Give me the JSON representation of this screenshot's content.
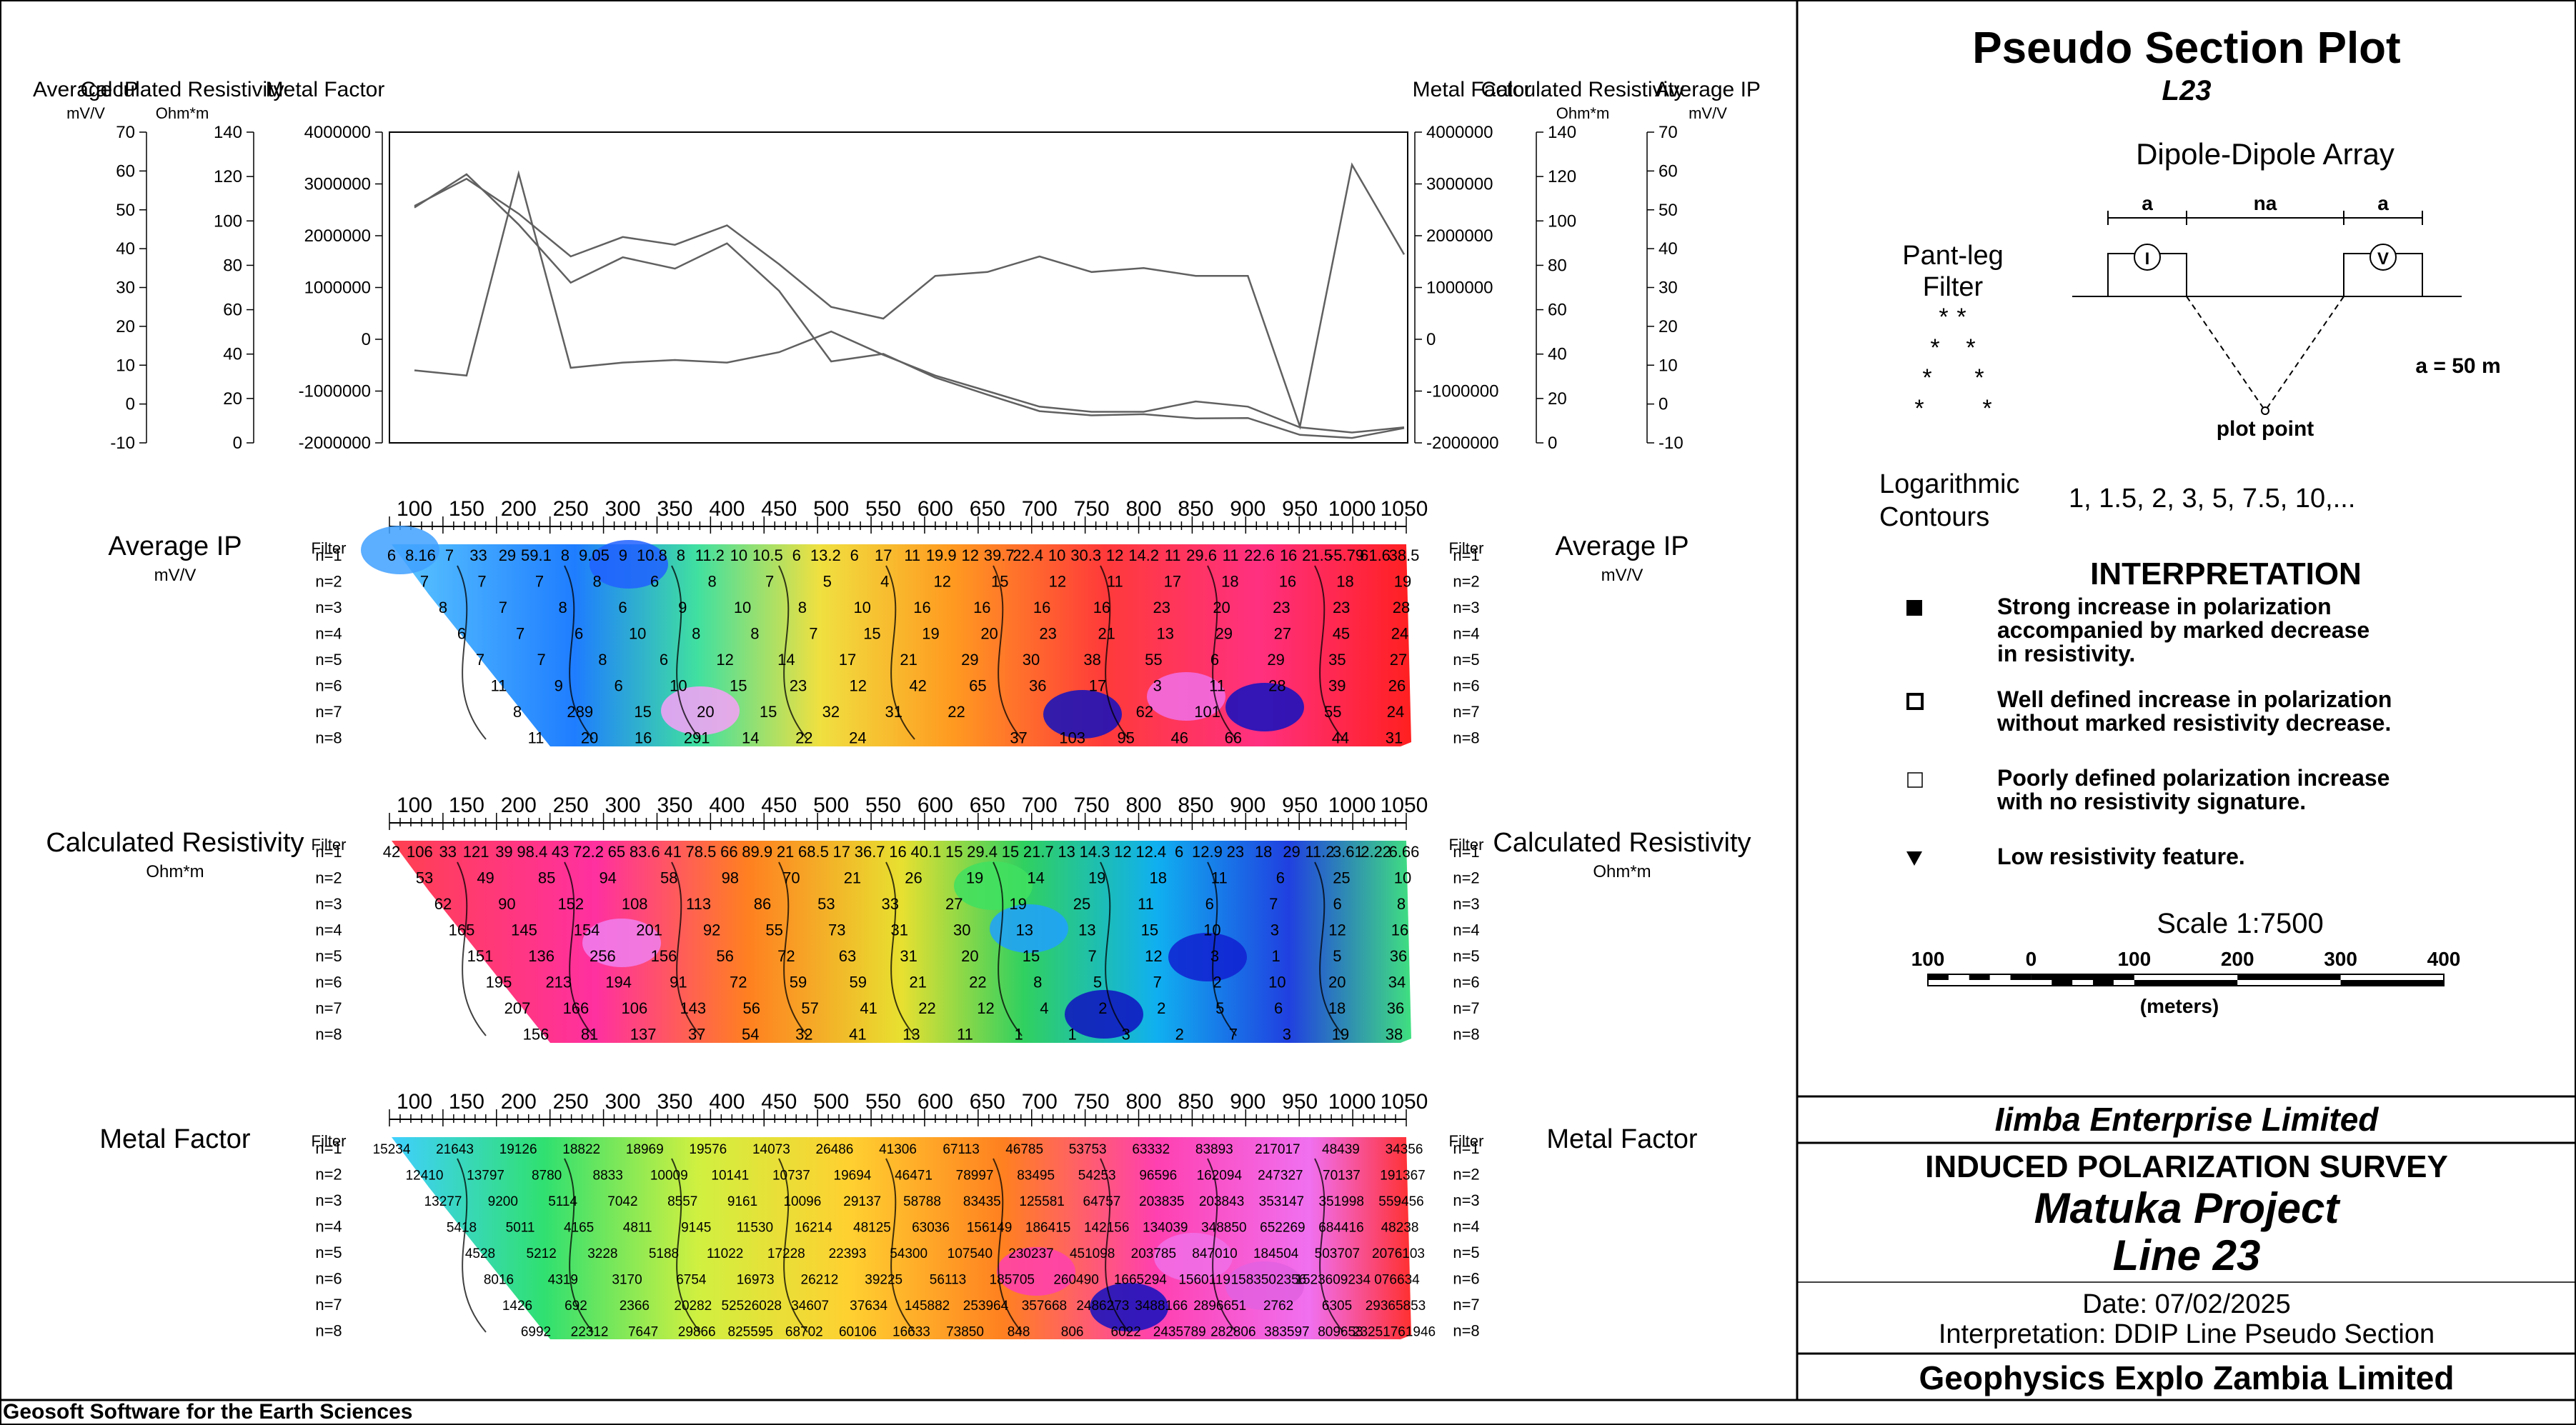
{
  "footer": "Geosoft Software for the Earth Sciences",
  "top_plot": {
    "left_axes": [
      {
        "title": "Average IP",
        "unit": "mV/V",
        "ticks": [
          "70",
          "60",
          "50",
          "40",
          "30",
          "20",
          "10",
          "0",
          "-10"
        ]
      },
      {
        "title": "Calculated Resistivity",
        "unit": "Ohm*m",
        "ticks": [
          "140",
          "120",
          "100",
          "80",
          "60",
          "40",
          "20",
          "0"
        ]
      },
      {
        "title": "Metal Factor",
        "unit": "",
        "ticks": [
          "4000000",
          "3000000",
          "2000000",
          "1000000",
          "0",
          "-1000000",
          "-2000000"
        ]
      }
    ],
    "right_axes": [
      {
        "title": "Metal Factor",
        "unit": "",
        "ticks": [
          "4000000",
          "3000000",
          "2000000",
          "1000000",
          "0",
          "-1000000",
          "-2000000"
        ]
      },
      {
        "title": "Calculated Resistivity",
        "unit": "Ohm*m",
        "ticks": [
          "140",
          "120",
          "100",
          "80",
          "60",
          "40",
          "20",
          "0"
        ]
      },
      {
        "title": "Average IP",
        "unit": "mV/V",
        "ticks": [
          "70",
          "60",
          "50",
          "40",
          "30",
          "20",
          "10",
          "0",
          "-10"
        ]
      }
    ]
  },
  "chart_data": {
    "type": "line",
    "x": [
      100,
      150,
      200,
      250,
      300,
      350,
      400,
      450,
      500,
      550,
      600,
      650,
      700,
      750,
      800,
      850,
      900,
      950,
      1000,
      1050
    ],
    "series": [
      {
        "values": [
          51,
          58,
          49,
          38,
          43,
          41,
          46,
          36,
          25,
          22,
          33,
          34,
          38,
          34,
          35,
          33,
          33,
          -5.79,
          61.6,
          38.5
        ]
      },
      {
        "values": [
          106,
          121,
          98.4,
          72.2,
          83.6,
          78.5,
          89.9,
          68.5,
          36.7,
          40.1,
          29.4,
          21.7,
          14.3,
          12.4,
          12.9,
          11,
          11.2,
          3.61,
          2.22,
          6.66
        ]
      },
      {
        "values": [
          -600000,
          -700000,
          3200000,
          -550000,
          -450000,
          -400000,
          -450000,
          -250000,
          150000,
          -300000,
          -700000,
          -1000000,
          -1300000,
          -1400000,
          -1400000,
          -1200000,
          -1300000,
          -1700000,
          -1800000,
          -1700000
        ]
      }
    ]
  },
  "x_ticks": [
    "100",
    "150",
    "200",
    "250",
    "300",
    "350",
    "400",
    "450",
    "500",
    "550",
    "600",
    "650",
    "700",
    "750",
    "800",
    "850",
    "900",
    "950",
    "1000",
    "1050"
  ],
  "levels": [
    "n=1",
    "n=2",
    "n=3",
    "n=4",
    "n=5",
    "n=6",
    "n=7",
    "n=8"
  ],
  "filter_label": "Filter",
  "sections": [
    {
      "title": "Average IP",
      "unit": "mV/V",
      "rows": [
        [
          "6",
          "8.16",
          "7",
          "33",
          "29",
          "59.1",
          "8",
          "9.05",
          "9",
          "10.8",
          "8",
          "11.2",
          "10",
          "10.5",
          "6",
          "13.2",
          "6",
          "17",
          "11",
          "19.9",
          "12",
          "39.7",
          "22.4",
          "10",
          "30.3",
          "12",
          "14.2",
          "11",
          "29.6",
          "11",
          "22.6",
          "16",
          "21.5",
          "-5.79",
          "61.6",
          "38.5"
        ],
        [
          "7",
          "7",
          "7",
          "8",
          "6",
          "8",
          "7",
          "5",
          "4",
          "12",
          "15",
          "12",
          "11",
          "17",
          "18",
          "16",
          "18",
          "19"
        ],
        [
          "8",
          "7",
          "8",
          "6",
          "9",
          "10",
          "8",
          "10",
          "16",
          "16",
          "16",
          "16",
          "23",
          "20",
          "23",
          "23",
          "28"
        ],
        [
          "6",
          "7",
          "6",
          "10",
          "8",
          "8",
          "7",
          "15",
          "19",
          "20",
          "23",
          "21",
          "13",
          "29",
          "27",
          "45",
          "24"
        ],
        [
          "7",
          "7",
          "8",
          "6",
          "12",
          "14",
          "17",
          "21",
          "29",
          "30",
          "38",
          "55",
          "6",
          "29",
          "35",
          "27"
        ],
        [
          "11",
          "9",
          "6",
          "10",
          "15",
          "23",
          "12",
          "42",
          "65",
          "36",
          "17",
          "3",
          "11",
          "28",
          "39",
          "26"
        ],
        [
          "8",
          "289",
          "15",
          "20",
          "15",
          "32",
          "31",
          "22",
          "-",
          "-",
          "62",
          "101",
          "-",
          "55",
          "24"
        ],
        [
          "11",
          "20",
          "16",
          "291",
          "14",
          "22",
          "24",
          "-",
          "-",
          "37",
          "103",
          "95",
          "46",
          "66",
          "-",
          "44",
          "31"
        ]
      ],
      "colors": {
        "low": "#1010d0",
        "high": "#f050e0"
      }
    },
    {
      "title": "Calculated Resistivity",
      "unit": "Ohm*m",
      "rows": [
        [
          "42",
          "106",
          "33",
          "121",
          "39",
          "98.4",
          "43",
          "72.2",
          "65",
          "83.6",
          "41",
          "78.5",
          "66",
          "89.9",
          "21",
          "68.5",
          "17",
          "36.7",
          "16",
          "40.1",
          "15",
          "29.4",
          "15",
          "21.7",
          "13",
          "14.3",
          "12",
          "12.4",
          "6",
          "12.9",
          "23",
          "18",
          "29",
          "11.2",
          "3.61",
          "2.22",
          "6.66"
        ],
        [
          "53",
          "49",
          "85",
          "94",
          "58",
          "98",
          "70",
          "21",
          "26",
          "19",
          "14",
          "19",
          "18",
          "11",
          "6",
          "25",
          "10"
        ],
        [
          "62",
          "90",
          "152",
          "108",
          "113",
          "86",
          "53",
          "33",
          "27",
          "19",
          "25",
          "11",
          "6",
          "7",
          "6",
          "8"
        ],
        [
          "165",
          "145",
          "154",
          "201",
          "92",
          "55",
          "73",
          "31",
          "30",
          "13",
          "13",
          "15",
          "10",
          "3",
          "12",
          "16"
        ],
        [
          "151",
          "136",
          "256",
          "156",
          "56",
          "72",
          "63",
          "31",
          "20",
          "15",
          "7",
          "12",
          "3",
          "1",
          "5",
          "36"
        ],
        [
          "195",
          "213",
          "194",
          "91",
          "72",
          "59",
          "59",
          "21",
          "22",
          "8",
          "5",
          "7",
          "2",
          "10",
          "20",
          "34"
        ],
        [
          "207",
          "166",
          "106",
          "143",
          "56",
          "57",
          "41",
          "22",
          "12",
          "4",
          "2",
          "2",
          "5",
          "6",
          "18",
          "36"
        ],
        [
          "156",
          "81",
          "137",
          "37",
          "54",
          "32",
          "41",
          "13",
          "11",
          "1",
          "1",
          "3",
          "2",
          "7",
          "3",
          "19",
          "38"
        ]
      ],
      "colors": {
        "low": "#1010d0",
        "high": "#f050e0"
      }
    },
    {
      "title": "Metal Factor",
      "unit": "",
      "rows": [
        [
          "15234",
          "21643",
          "19126",
          "18822",
          "18969",
          "19576",
          "14073",
          "26486",
          "41306",
          "67113",
          "46785",
          "53753",
          "63332",
          "83893",
          "217017",
          "48439",
          "34356"
        ],
        [
          "12410",
          "13797",
          "8780",
          "8833",
          "10009",
          "10141",
          "10737",
          "19694",
          "46471",
          "78997",
          "83495",
          "54253",
          "96596",
          "162094",
          "247327",
          "70137",
          "191367"
        ],
        [
          "13277",
          "9200",
          "5114",
          "7042",
          "8557",
          "9161",
          "10096",
          "29137",
          "58788",
          "83435",
          "125581",
          "64757",
          "203835",
          "203843",
          "353147",
          "351998",
          "559456"
        ],
        [
          "5418",
          "5011",
          "4165",
          "4811",
          "9145",
          "11530",
          "16214",
          "48125",
          "63036",
          "156149",
          "186415",
          "142156",
          "134039",
          "348850",
          "652269",
          "684416",
          "48238"
        ],
        [
          "4528",
          "5212",
          "3228",
          "5188",
          "11022",
          "17228",
          "22393",
          "54300",
          "107540",
          "230237",
          "451098",
          "203785",
          "847010",
          "184504",
          "503707",
          "2076103"
        ],
        [
          "8016",
          "4319",
          "3170",
          "6754",
          "16973",
          "26212",
          "39225",
          "56113",
          "185705",
          "260490",
          "1665294",
          "1560119",
          "1583502356",
          "1523609234",
          "076634"
        ],
        [
          "1426",
          "692",
          "2366",
          "20282",
          "52526028",
          "34607",
          "37634",
          "145882",
          "253964",
          "357668",
          "2486273",
          "3488166",
          "2896651",
          "2762",
          "6305",
          "29365853"
        ],
        [
          "6992",
          "22312",
          "7647",
          "29866",
          "825595",
          "68702",
          "60106",
          "16633",
          "73850",
          "848",
          "806",
          "6022",
          "2435789",
          "282806",
          "383597",
          "809653",
          "23251761946"
        ]
      ],
      "colors": {
        "low": "#1010d0",
        "high": "#f050e0"
      }
    }
  ],
  "panel": {
    "title": "Pseudo Section Plot",
    "line_id": "L23",
    "array_title": "Dipole-Dipole Array",
    "array_labels": {
      "a_left": "a",
      "na": "na",
      "a_right": "a",
      "i": "I",
      "v": "V",
      "plot_point": "plot point",
      "spacing": "a = 50 m"
    },
    "pant_leg_filter": "Pant-leg\nFilter",
    "contours_label": "Logarithmic\nContours",
    "contours_values": "1, 1.5, 2, 3, 5, 7.5, 10,...",
    "interpretation_title": "INTERPRETATION",
    "legend": [
      {
        "symbol": "filled-square",
        "text": "Strong increase in polarization\naccompanied by marked decrease\nin resistivity."
      },
      {
        "symbol": "bold-square",
        "text": "Well defined increase in polarization\nwithout marked resistivity decrease."
      },
      {
        "symbol": "open-square",
        "text": "Poorly defined polarization increase\nwith no resistivity signature."
      },
      {
        "symbol": "triangle-down",
        "text": "Low resistivity feature."
      }
    ],
    "scale": {
      "title": "Scale 1:7500",
      "ticks": [
        "100",
        "0",
        "100",
        "200",
        "300",
        "400"
      ],
      "unit": "(meters)"
    },
    "company": "Iimba Enterprise Limited",
    "survey": "INDUCED POLARIZATION SURVEY",
    "project": "Matuka Project",
    "line": "Line 23",
    "date": "Date: 07/02/2025",
    "interpretation_note": "Interpretation: DDIP Line Pseudo Section",
    "contractor": "Geophysics Explo Zambia Limited"
  }
}
